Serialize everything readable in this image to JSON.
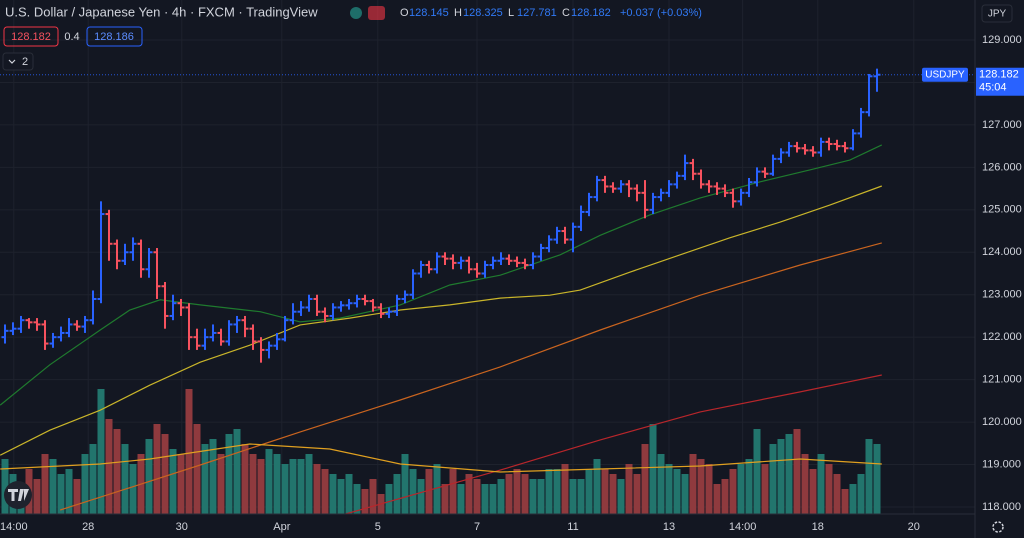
{
  "chart_data": {
    "type": "ohlc",
    "title": "U.S. Dollar / Japanese Yen · 4h · FXCM · TradingView",
    "ohlc_labels": [
      "O",
      "H",
      "L",
      "C"
    ],
    "change_label": "+0.037 (+0.03%)",
    "quote": {
      "bid": "128.182",
      "spread": "0.4",
      "ask": "128.186"
    },
    "indicators_count": "2",
    "currency": "JPY",
    "symbol": "USDJPY",
    "countdown": "45:04",
    "up_color": "#2962ff",
    "down_color": "#f7525f",
    "volume_up_color": "#22756d",
    "volume_down_color": "#8f3a3e",
    "xlim": [
      -0.625,
      121.25
    ],
    "ylim": [
      118.0,
      129.0
    ],
    "volume_lim": [
      0,
      130
    ],
    "grid": true,
    "xticks": [
      {
        "value": 1.1,
        "label": "14:00"
      },
      {
        "value": 10.4,
        "label": "28"
      },
      {
        "value": 22.1,
        "label": "30"
      },
      {
        "value": 34.6,
        "label": "Apr"
      },
      {
        "value": 46.6,
        "label": "5"
      },
      {
        "value": 59.0,
        "label": "7"
      },
      {
        "value": 71.0,
        "label": "11"
      },
      {
        "value": 83.0,
        "label": "13"
      },
      {
        "value": 92.2,
        "label": "14:00"
      },
      {
        "value": 101.6,
        "label": "18"
      },
      {
        "value": 113.6,
        "label": "20"
      }
    ],
    "yticks": [
      {
        "value": 129,
        "label": "129.000"
      },
      {
        "value": 128,
        "label": "128.000"
      },
      {
        "value": 127,
        "label": "127.000"
      },
      {
        "value": 126,
        "label": "126.000"
      },
      {
        "value": 125,
        "label": "125.000"
      },
      {
        "value": 124,
        "label": "124.000"
      },
      {
        "value": 123,
        "label": "123.000"
      },
      {
        "value": 122,
        "label": "122.000"
      },
      {
        "value": 121,
        "label": "121.000"
      },
      {
        "value": 120,
        "label": "120.000"
      },
      {
        "value": 119,
        "label": "119.000"
      },
      {
        "value": 118,
        "label": "118.000"
      }
    ],
    "open": [
      122.0,
      122.15,
      122.2,
      122.4,
      122.35,
      122.3,
      121.85,
      122.0,
      122.1,
      122.3,
      122.25,
      122.4,
      122.9,
      124.9,
      124.2,
      123.8,
      124.0,
      124.2,
      123.6,
      124.0,
      123.2,
      122.5,
      122.8,
      122.7,
      122.0,
      121.8,
      122.0,
      122.1,
      121.9,
      122.3,
      122.4,
      122.2,
      121.9,
      121.7,
      121.8,
      121.95,
      122.4,
      122.6,
      122.7,
      122.9,
      122.6,
      122.5,
      122.7,
      122.75,
      122.8,
      122.9,
      122.85,
      122.7,
      122.55,
      122.6,
      122.9,
      123.0,
      123.5,
      123.7,
      123.6,
      123.9,
      123.85,
      123.75,
      123.8,
      123.6,
      123.5,
      123.7,
      123.8,
      123.85,
      123.8,
      123.75,
      123.7,
      123.9,
      124.1,
      124.3,
      124.5,
      124.3,
      124.6,
      124.95,
      125.3,
      125.7,
      125.55,
      125.5,
      125.6,
      125.5,
      125.4,
      125.0,
      125.3,
      125.4,
      125.6,
      125.8,
      126.1,
      125.85,
      125.6,
      125.55,
      125.5,
      125.4,
      125.2,
      125.4,
      125.65,
      125.9,
      125.85,
      126.2,
      126.35,
      126.5,
      126.45,
      126.4,
      126.35,
      126.6,
      126.55,
      126.5,
      126.45,
      126.8,
      127.3,
      128.145
    ],
    "high": [
      122.3,
      122.35,
      122.5,
      122.45,
      122.45,
      122.4,
      122.1,
      122.25,
      122.45,
      122.4,
      122.5,
      123.1,
      125.2,
      125.0,
      124.3,
      124.2,
      124.35,
      124.3,
      124.1,
      124.1,
      123.3,
      123.0,
      122.9,
      122.8,
      122.2,
      122.2,
      122.3,
      122.2,
      122.4,
      122.5,
      122.5,
      122.3,
      122.0,
      121.9,
      122.1,
      122.5,
      122.8,
      122.85,
      123.0,
      123.0,
      122.7,
      122.8,
      122.85,
      122.9,
      123.0,
      123.0,
      122.9,
      122.8,
      122.7,
      123.0,
      123.1,
      123.6,
      123.8,
      123.8,
      124.0,
      124.0,
      123.95,
      123.9,
      123.9,
      123.75,
      123.8,
      123.9,
      124.0,
      123.95,
      123.9,
      123.85,
      124.0,
      124.2,
      124.4,
      124.6,
      124.6,
      124.7,
      125.1,
      125.4,
      125.8,
      125.8,
      125.65,
      125.7,
      125.7,
      125.6,
      125.7,
      125.4,
      125.5,
      125.7,
      125.9,
      126.3,
      126.2,
      125.95,
      125.7,
      125.65,
      125.6,
      125.5,
      125.5,
      125.75,
      126.0,
      126.0,
      126.3,
      126.45,
      126.6,
      126.6,
      126.55,
      126.5,
      126.7,
      126.7,
      126.65,
      126.6,
      126.9,
      127.4,
      128.2,
      128.325
    ],
    "low": [
      121.85,
      122.05,
      122.1,
      122.2,
      122.15,
      121.7,
      121.75,
      121.9,
      122.0,
      122.15,
      122.1,
      122.3,
      122.8,
      123.8,
      123.6,
      123.7,
      123.8,
      123.4,
      123.4,
      122.9,
      122.2,
      122.4,
      122.5,
      121.7,
      121.7,
      121.7,
      121.9,
      121.8,
      121.8,
      122.1,
      122.0,
      121.7,
      121.4,
      121.5,
      121.7,
      121.9,
      122.3,
      122.5,
      122.6,
      122.5,
      122.35,
      122.4,
      122.6,
      122.65,
      122.7,
      122.75,
      122.6,
      122.45,
      122.45,
      122.5,
      122.8,
      122.9,
      123.4,
      123.5,
      123.5,
      123.7,
      123.6,
      123.6,
      123.5,
      123.4,
      123.4,
      123.6,
      123.7,
      123.7,
      123.65,
      123.6,
      123.6,
      123.8,
      124.0,
      124.2,
      124.2,
      124.0,
      124.5,
      124.85,
      125.2,
      125.4,
      125.4,
      125.4,
      125.3,
      125.2,
      124.8,
      124.9,
      125.2,
      125.3,
      125.5,
      125.7,
      125.7,
      125.5,
      125.4,
      125.35,
      125.3,
      125.05,
      125.1,
      125.3,
      125.55,
      125.75,
      125.8,
      126.1,
      126.25,
      126.35,
      126.3,
      126.25,
      126.25,
      126.4,
      126.4,
      126.35,
      126.4,
      126.7,
      127.2,
      127.781
    ],
    "close": [
      122.15,
      122.2,
      122.4,
      122.35,
      122.3,
      121.85,
      122.0,
      122.1,
      122.3,
      122.25,
      122.4,
      122.9,
      124.9,
      124.2,
      123.8,
      124.0,
      124.2,
      123.6,
      124.0,
      123.2,
      122.5,
      122.8,
      122.7,
      122.0,
      121.8,
      122.0,
      122.1,
      121.9,
      122.3,
      122.4,
      122.2,
      121.9,
      121.7,
      121.8,
      121.95,
      122.4,
      122.6,
      122.7,
      122.9,
      122.6,
      122.5,
      122.7,
      122.75,
      122.8,
      122.9,
      122.85,
      122.7,
      122.55,
      122.6,
      122.9,
      123.0,
      123.5,
      123.7,
      123.6,
      123.9,
      123.85,
      123.75,
      123.8,
      123.6,
      123.5,
      123.7,
      123.8,
      123.85,
      123.8,
      123.75,
      123.7,
      123.9,
      124.1,
      124.3,
      124.5,
      124.3,
      124.6,
      124.95,
      125.3,
      125.7,
      125.55,
      125.5,
      125.6,
      125.5,
      125.4,
      125.0,
      125.3,
      125.4,
      125.6,
      125.8,
      126.1,
      125.85,
      125.6,
      125.55,
      125.5,
      125.4,
      125.2,
      125.4,
      125.65,
      125.9,
      125.85,
      126.2,
      126.35,
      126.5,
      126.45,
      126.4,
      126.35,
      126.6,
      126.55,
      126.5,
      126.45,
      126.8,
      127.3,
      128.145,
      128.182
    ],
    "volume": [
      55,
      40,
      30,
      45,
      35,
      60,
      55,
      40,
      45,
      35,
      60,
      70,
      125,
      95,
      85,
      70,
      50,
      60,
      75,
      90,
      80,
      65,
      60,
      125,
      90,
      70,
      75,
      60,
      80,
      85,
      70,
      60,
      55,
      65,
      60,
      50,
      55,
      55,
      60,
      50,
      45,
      40,
      35,
      40,
      30,
      25,
      35,
      20,
      30,
      40,
      60,
      45,
      35,
      45,
      50,
      30,
      45,
      30,
      40,
      35,
      30,
      30,
      35,
      40,
      45,
      40,
      35,
      35,
      45,
      45,
      50,
      35,
      35,
      45,
      55,
      45,
      40,
      35,
      50,
      40,
      70,
      90,
      60,
      50,
      45,
      40,
      60,
      55,
      50,
      30,
      35,
      45,
      50,
      55,
      85,
      50,
      70,
      75,
      80,
      85,
      60,
      45,
      60,
      50,
      40,
      25,
      30,
      40,
      75,
      70
    ],
    "ma_series": [
      {
        "color": "#1f7a2e",
        "x": [
          -0.6,
          5.6,
          11.9,
          15.6,
          19.4,
          24.4,
          31.9,
          36.9,
          41.9,
          49.4,
          55.6,
          61.9,
          69.4,
          74.4,
          80.6,
          86.9,
          94.4,
          100.6,
          105.6,
          109.6
        ],
        "values": [
          120.4,
          121.35,
          122.17,
          122.64,
          122.88,
          122.76,
          122.6,
          122.36,
          122.45,
          122.76,
          123.23,
          123.46,
          123.94,
          124.4,
          124.88,
          125.28,
          125.66,
          125.94,
          126.17,
          126.53
        ]
      },
      {
        "color": "#c9b52a",
        "x": [
          -0.6,
          5.6,
          11.9,
          18.1,
          24.4,
          30.6,
          36.9,
          43.1,
          49.4,
          55.6,
          61.9,
          68.1,
          71.9,
          78.1,
          84.4,
          90.6,
          96.9,
          103.1,
          109.6
        ],
        "values": [
          119.22,
          119.81,
          120.28,
          120.87,
          121.41,
          121.81,
          122.29,
          122.45,
          122.64,
          122.76,
          122.92,
          122.99,
          123.11,
          123.53,
          123.94,
          124.34,
          124.71,
          125.11,
          125.56
        ]
      },
      {
        "color": "#c9641f",
        "x": [
          6.9,
          11.9,
          24.4,
          36.9,
          49.4,
          61.9,
          74.4,
          86.9,
          99.4,
          109.6
        ],
        "values": [
          117.93,
          118.23,
          118.99,
          119.77,
          120.52,
          121.3,
          122.17,
          122.99,
          123.7,
          124.22
        ]
      },
      {
        "color": "#b8262b",
        "x": [
          41.9,
          61.9,
          74.4,
          86.9,
          99.4,
          109.6
        ],
        "values": [
          117.8,
          118.87,
          119.58,
          120.24,
          120.71,
          121.11
        ]
      },
      {
        "color": "#e0a020",
        "axis": "volume",
        "x": [
          -0.6,
          11.9,
          18.1,
          30.6,
          40.6,
          49.4,
          61.9,
          74.4,
          86.9,
          99.4,
          109.6
        ],
        "values": [
          45,
          50,
          55,
          70,
          65,
          50,
          42,
          45,
          48,
          55,
          50
        ]
      }
    ]
  }
}
